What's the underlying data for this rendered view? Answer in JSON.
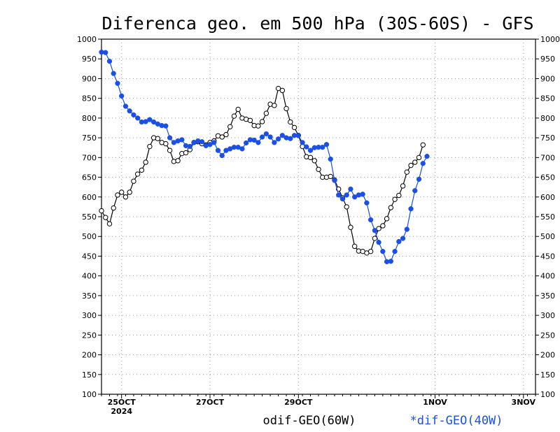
{
  "chart_data": {
    "type": "line",
    "title": "Diferenca geo. em 500 hPa (30S-60S) - GFS",
    "ylim": [
      100,
      1000
    ],
    "y_ticks": [
      100,
      150,
      200,
      250,
      300,
      350,
      400,
      450,
      500,
      550,
      600,
      650,
      700,
      750,
      800,
      850,
      900,
      950,
      1000
    ],
    "y_tick_labels": [
      "100",
      "150",
      "200",
      "250",
      "300",
      "350",
      "400",
      "450",
      "500",
      "550",
      "600",
      "650",
      "700",
      "750",
      "800",
      "850",
      "900",
      "950",
      "1000"
    ],
    "x_index_range": [
      0,
      108
    ],
    "x_ticks": [
      {
        "index": 5,
        "label": "25OCT",
        "sublabel": "2024"
      },
      {
        "index": 27,
        "label": "27OCT",
        "sublabel": ""
      },
      {
        "index": 49,
        "label": "29OCT",
        "sublabel": ""
      },
      {
        "index": 83,
        "label": "1NOV",
        "sublabel": ""
      },
      {
        "index": 105,
        "label": "3NOV",
        "sublabel": ""
      }
    ],
    "grid": true,
    "legend_position": "bottom",
    "series": [
      {
        "name": "odif-GEO(60W)",
        "color": "#000000",
        "marker": "open-circle",
        "values": [
          565,
          548,
          532,
          572,
          605,
          612,
          600,
          612,
          640,
          658,
          668,
          688,
          728,
          750,
          748,
          738,
          735,
          718,
          690,
          692,
          710,
          712,
          720,
          738,
          740,
          735,
          732,
          738,
          742,
          755,
          752,
          758,
          778,
          805,
          822,
          800,
          797,
          794,
          781,
          780,
          791,
          812,
          835,
          832,
          875,
          870,
          824,
          790,
          776,
          756,
          728,
          702,
          700,
          692,
          670,
          650,
          650,
          652,
          643,
          620,
          598,
          575,
          523,
          475,
          463,
          462,
          458,
          462,
          495,
          520,
          527,
          545,
          573,
          594,
          604,
          628,
          663,
          680,
          688,
          700,
          732
        ]
      },
      {
        "name": "*dif-GEO(40W)",
        "color": "#1a4fe8",
        "marker": "filled-circle",
        "values": [
          967,
          966,
          944,
          913,
          888,
          856,
          830,
          818,
          808,
          800,
          790,
          791,
          796,
          790,
          785,
          781,
          780,
          750,
          738,
          742,
          745,
          730,
          728,
          738,
          742,
          740,
          730,
          733,
          738,
          718,
          705,
          718,
          722,
          726,
          726,
          722,
          737,
          745,
          744,
          738,
          752,
          760,
          752,
          738,
          747,
          756,
          750,
          748,
          756,
          756,
          738,
          727,
          718,
          725,
          726,
          726,
          733,
          696,
          642,
          605,
          595,
          605,
          620,
          600,
          605,
          607,
          585,
          542,
          515,
          485,
          462,
          436,
          437,
          462,
          487,
          495,
          518,
          570,
          616,
          645,
          685,
          703
        ]
      }
    ]
  }
}
